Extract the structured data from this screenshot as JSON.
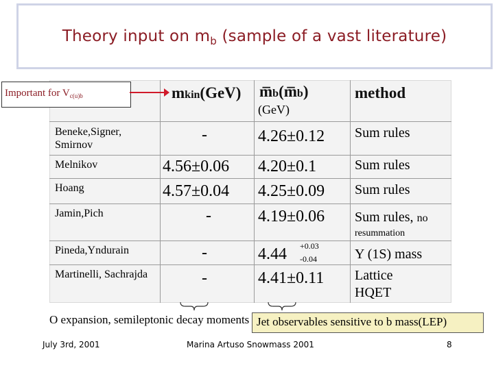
{
  "title": {
    "text": "Theory input on m",
    "sub": "b",
    "rest": " (sample of a vast literature)"
  },
  "callout": {
    "text": "Important for V",
    "sub": "c(u)b"
  },
  "table": {
    "headers": {
      "kin": {
        "main": "m",
        "sub": "kin",
        "unit": "(GeV)"
      },
      "mb": {
        "main": "m̅",
        "sub": "b",
        "arg": "(m̅",
        "argsub": "b",
        "close": ")",
        "unit": "(GeV)"
      },
      "method": "method"
    },
    "rows": [
      {
        "author": "Beneke,Signer, Smirnov",
        "mkin": "-",
        "mb": "4.26±0.12",
        "method": "Sum rules"
      },
      {
        "author": "Melnikov",
        "mkin": "4.56±0.06",
        "mb": "4.20±0.1",
        "method": "Sum rules"
      },
      {
        "author": "Hoang",
        "mkin": "4.57±0.04",
        "mb": "4.25±0.09",
        "method": "Sum rules"
      },
      {
        "author": "Jamin,Pich",
        "mkin": "-",
        "mb": "4.19±0.06",
        "method": "Sum rules,",
        "method_note": "no",
        "method_note2": "resummation"
      },
      {
        "author": "Pineda,Yndurain",
        "mkin": "-",
        "mb": "4.44",
        "mb_up": "+0.03",
        "mb_down": "-0.04",
        "method": "(1S) mass",
        "method_glyph": "Υ"
      },
      {
        "author": "Martinelli, Sachrajda",
        "mkin": "-",
        "mb": "4.41±0.11",
        "method": "Lattice",
        "method2": "HQET"
      }
    ]
  },
  "bottom": {
    "left_glyph": "O",
    "left_text": " expansion, semileptonic decay moments",
    "right_text": "Jet observables sensitive to b mass(LEP)"
  },
  "footer": {
    "date": "July 3rd, 2001",
    "author": "Marina Artuso Snowmass 2001",
    "page": "8"
  },
  "colors": {
    "title": "#8b1c24",
    "arrow": "#d01a2a",
    "callout_text": "#8b1c24",
    "highlight": "#f6f1c2"
  }
}
